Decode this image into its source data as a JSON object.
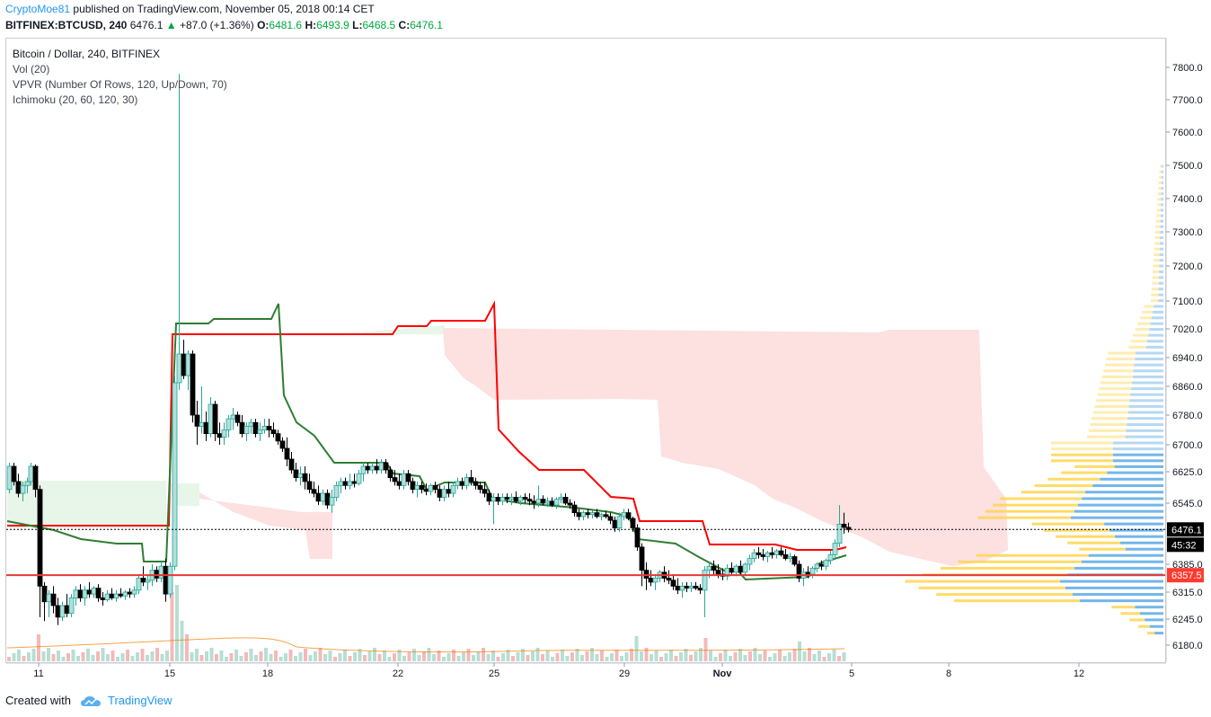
{
  "header": {
    "author": "CryptoMoe81",
    "published_text": "published on TradingView.com, November 05, 2018 00:14 CET",
    "symbol": "BITFINEX:BTCUSD, 240",
    "last": "6476.1",
    "change": "+87.0 (+1.36%)",
    "o_label": "O:",
    "o_value": "6481.6",
    "h_label": "H:",
    "h_value": "6493.9",
    "l_label": "L:",
    "l_value": "6468.5",
    "c_label": "C:",
    "c_value": "6476.1"
  },
  "legend": {
    "title": "Bitcoin / Dollar, 240, BITFINEX",
    "vol": "Vol (20)",
    "vpvr": "VPVR (Number Of Rows, 120, Up/Down, 70)",
    "ichimoku": "Ichimoku (20, 60, 120, 30)"
  },
  "footer": {
    "created_with": "Created with",
    "brand": "TradingView"
  },
  "colors": {
    "up": "#26a69a",
    "up_fill": "#b2dfdb",
    "down": "#000000",
    "tenkan": "#ff0000",
    "kijun": "#2e7d32",
    "cloud_bull": "#e8f5e9",
    "cloud_bear": "#fde0e0",
    "vp_up": "#5aa9e6",
    "vp_down": "#ffd54f",
    "support": "#e53935",
    "price_line": "#000000"
  },
  "chart_data": {
    "type": "candlestick",
    "y_axis_ticks": [
      "7800.0",
      "7700.0",
      "7600.0",
      "7500.0",
      "7400.0",
      "7300.0",
      "7200.0",
      "7100.0",
      "7020.0",
      "6940.0",
      "6860.0",
      "6780.0",
      "6700.0",
      "6625.0",
      "6545.0",
      "6385.0",
      "6315.0",
      "6245.0",
      "6180.0"
    ],
    "x_axis_ticks": [
      "11",
      "15",
      "18",
      "22",
      "25",
      "29",
      "Nov",
      "5",
      "8",
      "12"
    ],
    "last_price_label": "6476.1",
    "countdown_label": "45:32",
    "support_label": "6357.5",
    "support_level": 6357.5,
    "last_price": 6476.1,
    "series": [
      {
        "name": "close",
        "points": [
          [
            "Oct 10",
            6620
          ],
          [
            "Oct 11",
            6280
          ],
          [
            "Oct 12",
            6300
          ],
          [
            "Oct 13",
            6300
          ],
          [
            "Oct 14",
            6310
          ],
          [
            "Oct 15",
            6870
          ],
          [
            "Oct 16",
            6800
          ],
          [
            "Oct 17",
            6730
          ],
          [
            "Oct 18",
            6710
          ],
          [
            "Oct 19",
            6560
          ],
          [
            "Oct 20",
            6560
          ],
          [
            "Oct 21",
            6610
          ],
          [
            "Oct 22",
            6560
          ],
          [
            "Oct 23",
            6550
          ],
          [
            "Oct 24",
            6580
          ],
          [
            "Oct 25",
            6540
          ],
          [
            "Oct 26",
            6545
          ],
          [
            "Oct 27",
            6545
          ],
          [
            "Oct 28",
            6510
          ],
          [
            "Oct 29",
            6360
          ],
          [
            "Oct 30",
            6330
          ],
          [
            "Oct 31",
            6330
          ],
          [
            "Nov 1",
            6380
          ],
          [
            "Nov 2",
            6400
          ],
          [
            "Nov 3",
            6390
          ],
          [
            "Nov 4",
            6400
          ],
          [
            "Nov 5",
            6476.1
          ]
        ]
      }
    ],
    "ylim": [
      6150,
      7860
    ]
  }
}
